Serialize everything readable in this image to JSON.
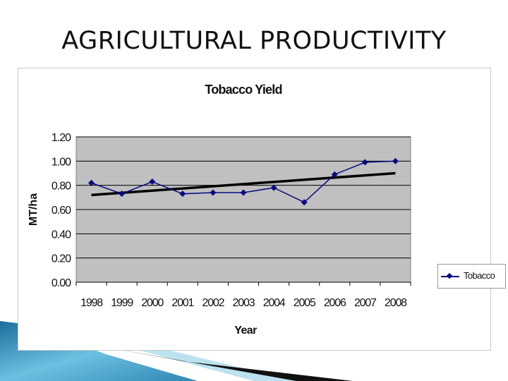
{
  "slide": {
    "title": "AGRICULTURAL PRODUCTIVITY"
  },
  "colors": {
    "plot_background": "#c0c0c0",
    "series_color": "#0a0a80",
    "trend_color": "#000000",
    "decoration_blue": "#2f86b3"
  },
  "chart_data": {
    "type": "line",
    "title": "Tobacco Yield",
    "xlabel": "Year",
    "ylabel": "MT/ha",
    "categories": [
      "1998",
      "1999",
      "2000",
      "2001",
      "2002",
      "2003",
      "2004",
      "2005",
      "2006",
      "2007",
      "2008"
    ],
    "series": [
      {
        "name": "Tobacco",
        "values": [
          0.82,
          0.73,
          0.83,
          0.73,
          0.74,
          0.74,
          0.78,
          0.66,
          0.89,
          0.99,
          1.0
        ]
      }
    ],
    "trendline": {
      "start": 0.72,
      "end": 0.9
    },
    "yticks": [
      "0.00",
      "0.20",
      "0.40",
      "0.60",
      "0.80",
      "1.00",
      "1.20"
    ],
    "ylim": [
      0,
      1.2
    ],
    "grid": true,
    "legend": "right"
  }
}
